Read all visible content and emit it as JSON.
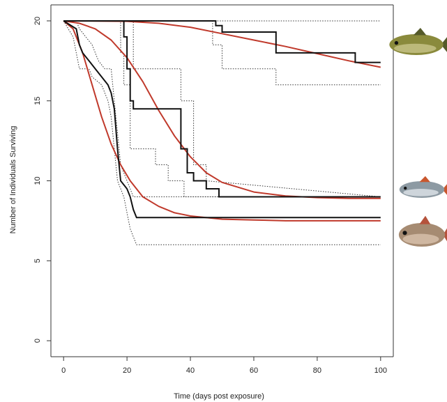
{
  "chart_data": {
    "type": "line",
    "title": "",
    "xlabel": "Time (days post exposure)",
    "ylabel": "Number of Individuals Surviving",
    "xlim": [
      -4,
      104
    ],
    "ylim": [
      -1,
      21
    ],
    "xticks": [
      0,
      20,
      40,
      60,
      80,
      100
    ],
    "yticks": [
      0,
      5,
      10,
      15,
      20
    ],
    "grid": false,
    "legend": "none",
    "colors": {
      "km": "#111111",
      "fit": "#c0392b",
      "ci": "#333333",
      "axis": "#333333"
    },
    "species_icons": [
      "tench-fish-icon",
      "roach-fish-icon",
      "bream-fish-icon"
    ],
    "series": [
      {
        "group": 1,
        "km": [
          [
            0,
            20
          ],
          [
            48,
            20
          ],
          [
            48,
            19.7
          ],
          [
            50,
            19.7
          ],
          [
            50,
            19.3
          ],
          [
            67,
            19.3
          ],
          [
            67,
            18
          ],
          [
            92,
            18
          ],
          [
            92,
            17.4
          ],
          [
            100,
            17.4
          ]
        ],
        "ci_upper": [
          [
            0,
            20
          ],
          [
            100,
            20
          ]
        ],
        "ci_lower": [
          [
            0,
            20
          ],
          [
            47,
            20
          ],
          [
            47,
            18.5
          ],
          [
            50,
            18.5
          ],
          [
            50,
            17
          ],
          [
            67,
            17
          ],
          [
            67,
            16
          ],
          [
            100,
            16
          ]
        ],
        "fit": [
          [
            0,
            20
          ],
          [
            10,
            19.99
          ],
          [
            20,
            19.97
          ],
          [
            30,
            19.85
          ],
          [
            40,
            19.6
          ],
          [
            50,
            19.2
          ],
          [
            60,
            18.8
          ],
          [
            70,
            18.4
          ],
          [
            80,
            17.95
          ],
          [
            90,
            17.5
          ],
          [
            100,
            17.1
          ]
        ]
      },
      {
        "group": 2,
        "km": [
          [
            0,
            20
          ],
          [
            19,
            20
          ],
          [
            19,
            19
          ],
          [
            20,
            19
          ],
          [
            20,
            17
          ],
          [
            21,
            17
          ],
          [
            21,
            15
          ],
          [
            22,
            15
          ],
          [
            22,
            14.5
          ],
          [
            37,
            14.5
          ],
          [
            37,
            12
          ],
          [
            39,
            12
          ],
          [
            39,
            10.5
          ],
          [
            41,
            10.5
          ],
          [
            41,
            10
          ],
          [
            45,
            10
          ],
          [
            45,
            9.5
          ],
          [
            49,
            9.5
          ],
          [
            49,
            9
          ],
          [
            100,
            9
          ]
        ],
        "ci_upper": [
          [
            0,
            20
          ],
          [
            22,
            20
          ],
          [
            22,
            17
          ],
          [
            37,
            17
          ],
          [
            37,
            15
          ],
          [
            41,
            15
          ],
          [
            41,
            11
          ],
          [
            45,
            11
          ],
          [
            45,
            10
          ],
          [
            100,
            9
          ]
        ],
        "ci_lower": [
          [
            0,
            20
          ],
          [
            18,
            20
          ],
          [
            18,
            18
          ],
          [
            19,
            18
          ],
          [
            19,
            16
          ],
          [
            21,
            16
          ],
          [
            21,
            12
          ],
          [
            29,
            12
          ],
          [
            29,
            11
          ],
          [
            33,
            11
          ],
          [
            33,
            10
          ],
          [
            38,
            10
          ],
          [
            38,
            9
          ],
          [
            100,
            9
          ]
        ],
        "fit": [
          [
            0,
            20
          ],
          [
            5,
            19.85
          ],
          [
            10,
            19.5
          ],
          [
            15,
            18.8
          ],
          [
            20,
            17.7
          ],
          [
            25,
            16.2
          ],
          [
            30,
            14.4
          ],
          [
            35,
            12.8
          ],
          [
            40,
            11.5
          ],
          [
            45,
            10.5
          ],
          [
            50,
            9.9
          ],
          [
            60,
            9.3
          ],
          [
            70,
            9.05
          ],
          [
            80,
            8.95
          ],
          [
            90,
            8.9
          ],
          [
            100,
            8.9
          ]
        ]
      },
      {
        "group": 3,
        "km": [
          [
            0,
            20
          ],
          [
            4,
            19.5
          ],
          [
            5,
            18.5
          ],
          [
            6,
            18
          ],
          [
            8,
            17.5
          ],
          [
            10,
            17
          ],
          [
            12,
            16.5
          ],
          [
            14,
            16
          ],
          [
            15,
            15.5
          ],
          [
            16,
            14.5
          ],
          [
            17,
            12
          ],
          [
            18,
            10
          ],
          [
            20,
            9.5
          ],
          [
            21,
            9
          ],
          [
            22,
            8.2
          ],
          [
            23,
            7.7
          ],
          [
            100,
            7.7
          ]
        ],
        "ci_upper": [
          [
            0,
            20
          ],
          [
            4,
            20
          ],
          [
            5,
            19.5
          ],
          [
            7,
            19
          ],
          [
            9,
            18.5
          ],
          [
            11,
            17.5
          ],
          [
            13,
            17
          ],
          [
            15,
            17
          ],
          [
            16,
            15
          ],
          [
            17,
            13
          ],
          [
            18,
            11
          ],
          [
            20,
            10
          ],
          [
            22,
            9
          ],
          [
            23,
            9
          ],
          [
            100,
            9
          ]
        ],
        "ci_lower": [
          [
            0,
            20
          ],
          [
            3,
            19
          ],
          [
            5,
            17
          ],
          [
            8,
            17
          ],
          [
            9,
            16.5
          ],
          [
            12,
            16
          ],
          [
            14,
            15
          ],
          [
            15,
            14
          ],
          [
            16,
            12
          ],
          [
            17,
            10
          ],
          [
            19,
            9
          ],
          [
            20,
            8
          ],
          [
            21,
            7
          ],
          [
            23,
            6
          ],
          [
            100,
            6
          ]
        ],
        "fit": [
          [
            0,
            20
          ],
          [
            3,
            19.5
          ],
          [
            6,
            18
          ],
          [
            9,
            16
          ],
          [
            12,
            14
          ],
          [
            15,
            12.3
          ],
          [
            18,
            11
          ],
          [
            21,
            10
          ],
          [
            25,
            9
          ],
          [
            30,
            8.4
          ],
          [
            35,
            8
          ],
          [
            40,
            7.8
          ],
          [
            50,
            7.6
          ],
          [
            60,
            7.55
          ],
          [
            70,
            7.5
          ],
          [
            80,
            7.5
          ],
          [
            100,
            7.5
          ]
        ]
      }
    ]
  }
}
